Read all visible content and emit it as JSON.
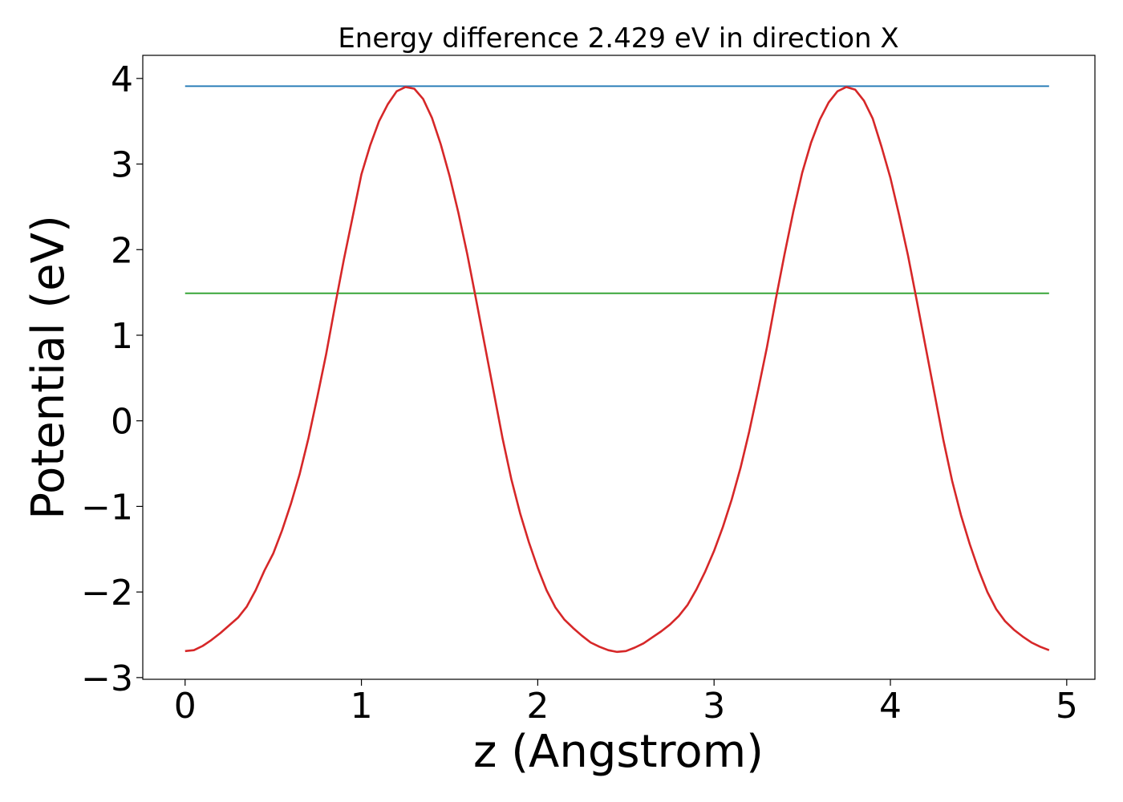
{
  "chart_data": {
    "type": "line",
    "title": "Energy difference 2.429 eV in direction X",
    "xlabel": "z (Angstrom)",
    "ylabel": "Potential (eV)",
    "xlim": [
      -0.24,
      5.16
    ],
    "ylim": [
      -3.02,
      4.27
    ],
    "x_ticks": [
      0,
      1,
      2,
      3,
      4,
      5
    ],
    "x_tick_labels": [
      "0",
      "1",
      "2",
      "3",
      "4",
      "5"
    ],
    "y_ticks": [
      -3,
      -2,
      -1,
      0,
      1,
      2,
      3,
      4
    ],
    "y_tick_labels": [
      "−3",
      "−2",
      "−1",
      "0",
      "1",
      "2",
      "3",
      "4"
    ],
    "grid": false,
    "series": [
      {
        "color": "#d62728",
        "x": [
          0.0,
          0.05,
          0.1,
          0.15,
          0.2,
          0.25,
          0.3,
          0.35,
          0.4,
          0.45,
          0.5,
          0.55,
          0.6,
          0.65,
          0.7,
          0.75,
          0.8,
          0.85,
          0.9,
          0.95,
          1.0,
          1.05,
          1.1,
          1.15,
          1.2,
          1.25,
          1.3,
          1.35,
          1.4,
          1.45,
          1.5,
          1.55,
          1.6,
          1.65,
          1.7,
          1.75,
          1.8,
          1.85,
          1.9,
          1.95,
          2.0,
          2.05,
          2.1,
          2.15,
          2.2,
          2.25,
          2.3,
          2.35,
          2.4,
          2.45,
          2.5,
          2.55,
          2.6,
          2.65,
          2.7,
          2.75,
          2.8,
          2.85,
          2.9,
          2.95,
          3.0,
          3.05,
          3.1,
          3.15,
          3.2,
          3.25,
          3.3,
          3.35,
          3.4,
          3.45,
          3.5,
          3.55,
          3.6,
          3.65,
          3.7,
          3.75,
          3.8,
          3.85,
          3.9,
          3.95,
          4.0,
          4.05,
          4.1,
          4.15,
          4.2,
          4.25,
          4.3,
          4.35,
          4.4,
          4.45,
          4.5,
          4.55,
          4.6,
          4.65,
          4.7,
          4.75,
          4.8,
          4.85,
          4.9
        ],
        "y": [
          -2.69,
          -2.68,
          -2.63,
          -2.56,
          -2.48,
          -2.39,
          -2.3,
          -2.17,
          -1.98,
          -1.75,
          -1.55,
          -1.28,
          -0.97,
          -0.62,
          -0.2,
          0.28,
          0.78,
          1.34,
          1.88,
          2.38,
          2.88,
          3.22,
          3.5,
          3.7,
          3.85,
          3.9,
          3.88,
          3.76,
          3.54,
          3.23,
          2.86,
          2.43,
          1.95,
          1.42,
          0.88,
          0.34,
          -0.2,
          -0.68,
          -1.08,
          -1.42,
          -1.72,
          -1.98,
          -2.18,
          -2.32,
          -2.42,
          -2.51,
          -2.59,
          -2.64,
          -2.68,
          -2.7,
          -2.69,
          -2.65,
          -2.6,
          -2.53,
          -2.46,
          -2.38,
          -2.28,
          -2.15,
          -1.97,
          -1.76,
          -1.52,
          -1.24,
          -0.92,
          -0.55,
          -0.12,
          0.36,
          0.86,
          1.42,
          1.95,
          2.45,
          2.9,
          3.25,
          3.52,
          3.72,
          3.85,
          3.9,
          3.87,
          3.74,
          3.53,
          3.2,
          2.84,
          2.4,
          1.93,
          1.4,
          0.86,
          0.32,
          -0.22,
          -0.7,
          -1.1,
          -1.44,
          -1.74,
          -2.0,
          -2.2,
          -2.34,
          -2.44,
          -2.52,
          -2.59,
          -2.64,
          -2.68
        ]
      },
      {
        "color": "#1f77b4",
        "x": [
          0.0,
          4.9
        ],
        "y": [
          3.91,
          3.91
        ]
      },
      {
        "color": "#2ca02c",
        "x": [
          0.0,
          4.9
        ],
        "y": [
          1.49,
          1.49
        ]
      }
    ]
  }
}
